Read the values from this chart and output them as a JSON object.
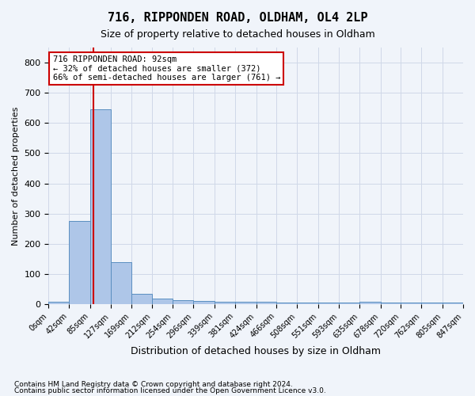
{
  "title": "716, RIPPONDEN ROAD, OLDHAM, OL4 2LP",
  "subtitle": "Size of property relative to detached houses in Oldham",
  "xlabel": "Distribution of detached houses by size in Oldham",
  "ylabel": "Number of detached properties",
  "footnote1": "Contains HM Land Registry data © Crown copyright and database right 2024.",
  "footnote2": "Contains public sector information licensed under the Open Government Licence v3.0.",
  "property_size": 92,
  "annotation_text": "716 RIPPONDEN ROAD: 92sqm\n← 32% of detached houses are smaller (372)\n66% of semi-detached houses are larger (761) →",
  "bin_edges": [
    0,
    42,
    85,
    127,
    169,
    212,
    254,
    296,
    339,
    381,
    424,
    466,
    508,
    551,
    593,
    635,
    678,
    720,
    762,
    805,
    847
  ],
  "bin_counts": [
    8,
    275,
    645,
    140,
    35,
    18,
    12,
    10,
    8,
    8,
    8,
    5,
    5,
    5,
    5,
    8,
    5,
    5,
    5,
    5
  ],
  "bar_color": "#aec6e8",
  "bar_edge_color": "#5a8fc0",
  "vline_color": "#cc0000",
  "vline_x": 92,
  "annotation_box_color": "#cc0000",
  "annotation_bg": "white",
  "grid_color": "#d0d8e8",
  "ylim": [
    0,
    850
  ],
  "yticks": [
    0,
    100,
    200,
    300,
    400,
    500,
    600,
    700,
    800
  ],
  "background_color": "#f0f4fa"
}
